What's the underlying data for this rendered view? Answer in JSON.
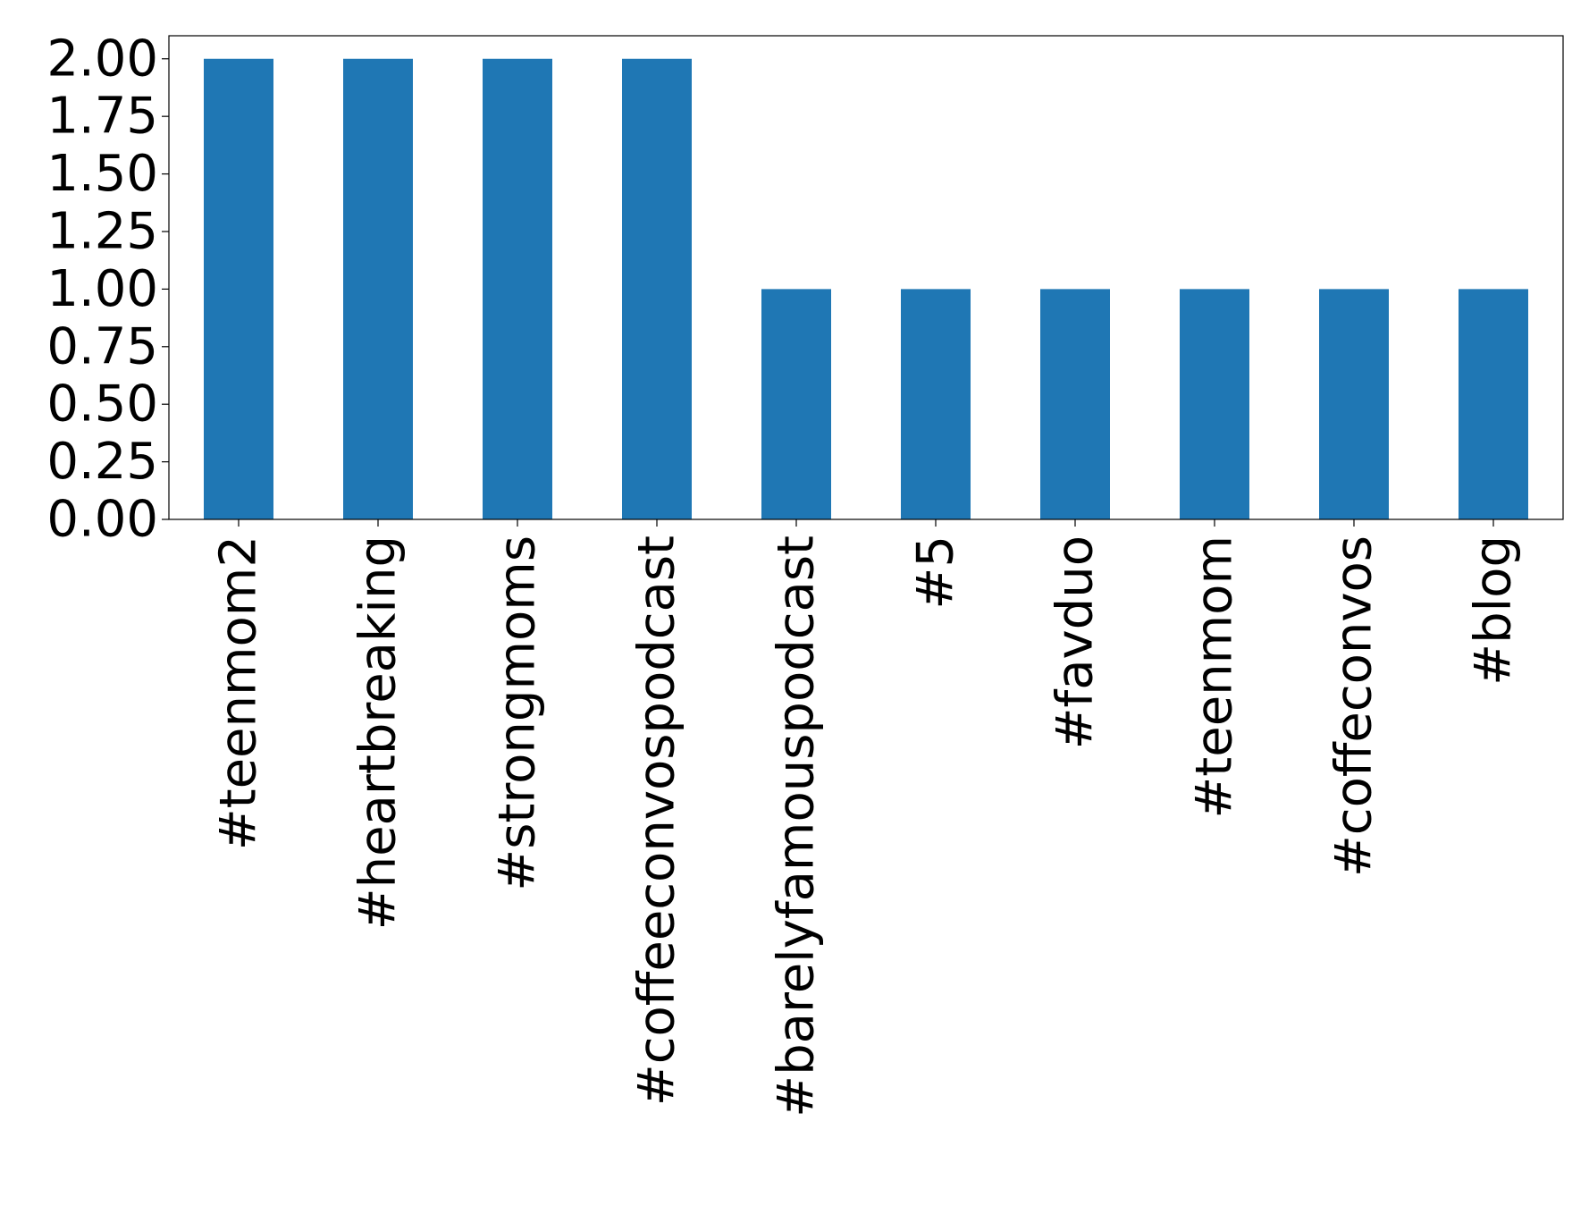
{
  "chart_data": {
    "type": "bar",
    "categories": [
      "#teenmom2",
      "#heartbreaking",
      "#strongmoms",
      "#coffeeconvospodcast",
      "#barelyfamouspodcast",
      "#5",
      "#favduo",
      "#teenmom",
      "#coffeconvos",
      "#blog"
    ],
    "values": [
      2,
      2,
      2,
      2,
      1,
      1,
      1,
      1,
      1,
      1
    ],
    "color": "#1f77b4",
    "ylim": [
      0,
      2.1
    ],
    "yticks": [
      {
        "value": 0,
        "label": "0.00"
      },
      {
        "value": 0.25,
        "label": "0.25"
      },
      {
        "value": 0.5,
        "label": "0.50"
      },
      {
        "value": 0.75,
        "label": "0.75"
      },
      {
        "value": 1,
        "label": "1.00"
      },
      {
        "value": 1.25,
        "label": "1.25"
      },
      {
        "value": 1.5,
        "label": "1.50"
      },
      {
        "value": 1.75,
        "label": "1.75"
      },
      {
        "value": 2,
        "label": "2.00"
      }
    ],
    "grid": false
  }
}
